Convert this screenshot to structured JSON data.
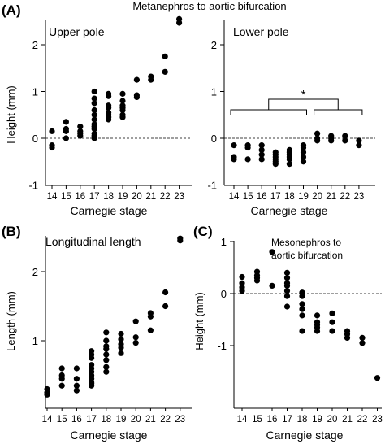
{
  "figure": {
    "top_title": "Metanephros to aortic bifurcation",
    "stage_xlabel": "Carnegie stage",
    "stages": [
      "14",
      "15",
      "16",
      "17",
      "18",
      "19",
      "20",
      "21",
      "22",
      "23"
    ]
  },
  "chart_data": [
    {
      "id": "A-upper",
      "panel_label": "(A)",
      "type": "scatter",
      "title": "Upper pole",
      "ylabel": "Height (mm)",
      "xlabel": "",
      "ylim": [
        -1,
        2.5
      ],
      "yticks": [
        "-1",
        "0",
        "1",
        "2"
      ],
      "reference_line": 0,
      "x": [
        "14",
        "14",
        "14",
        "15",
        "15",
        "15",
        "15",
        "16",
        "16",
        "16",
        "16",
        "17",
        "17",
        "17",
        "17",
        "17",
        "17",
        "17",
        "17",
        "17",
        "17",
        "17",
        "17",
        "18",
        "18",
        "18",
        "18",
        "18",
        "18",
        "18",
        "18",
        "19",
        "19",
        "19",
        "19",
        "19",
        "19",
        "19",
        "20",
        "20",
        "20",
        "21",
        "21",
        "22",
        "22",
        "23",
        "23"
      ],
      "y": [
        0.15,
        -0.15,
        -0.2,
        0.35,
        0.2,
        0.15,
        0.0,
        0.25,
        0.15,
        0.1,
        0.05,
        1.0,
        0.85,
        0.75,
        0.6,
        0.5,
        0.4,
        0.3,
        0.25,
        0.2,
        0.1,
        0.05,
        0.0,
        0.95,
        0.9,
        0.7,
        0.65,
        0.55,
        0.5,
        0.45,
        0.4,
        0.95,
        0.8,
        0.7,
        0.65,
        0.6,
        0.5,
        0.45,
        1.25,
        0.92,
        0.88,
        1.32,
        1.25,
        1.75,
        1.42,
        2.55,
        2.47
      ]
    },
    {
      "id": "A-lower",
      "panel_label": "",
      "type": "scatter",
      "title": "Lower pole",
      "xlabel": "Carnegie stage",
      "ylabel": "",
      "ylim": [
        -1,
        2.5
      ],
      "yticks": [
        "-1",
        "0",
        "1",
        "2"
      ],
      "reference_line": 0,
      "significance": "*",
      "x": [
        "14",
        "14",
        "14",
        "15",
        "15",
        "15",
        "16",
        "16",
        "16",
        "16",
        "17",
        "17",
        "17",
        "17",
        "17",
        "17",
        "18",
        "18",
        "18",
        "18",
        "18",
        "18",
        "19",
        "19",
        "19",
        "19",
        "19",
        "20",
        "20",
        "20",
        "21",
        "21",
        "21",
        "22",
        "22",
        "23",
        "23"
      ],
      "y": [
        -0.15,
        -0.4,
        -0.45,
        -0.15,
        -0.2,
        -0.45,
        -0.15,
        -0.25,
        -0.35,
        -0.45,
        -0.3,
        -0.35,
        -0.4,
        -0.45,
        -0.5,
        -0.55,
        -0.25,
        -0.3,
        -0.35,
        -0.4,
        -0.45,
        -0.55,
        -0.15,
        -0.2,
        -0.3,
        -0.4,
        -0.5,
        0.1,
        -0.05,
        0.0,
        0.05,
        0.0,
        -0.05,
        0.05,
        -0.05,
        -0.05,
        -0.15
      ]
    },
    {
      "id": "B",
      "panel_label": "(B)",
      "type": "scatter",
      "title": "Longitudinal length",
      "ylabel": "Length (mm)",
      "xlabel": "Carnegie stage",
      "ylim": [
        0,
        2.5
      ],
      "yticks": [
        "1",
        "2"
      ],
      "x": [
        "14",
        "14",
        "14",
        "15",
        "15",
        "15",
        "15",
        "16",
        "16",
        "16",
        "16",
        "17",
        "17",
        "17",
        "17",
        "17",
        "17",
        "17",
        "17",
        "17",
        "17",
        "17",
        "18",
        "18",
        "18",
        "18",
        "18",
        "18",
        "18",
        "18",
        "19",
        "19",
        "19",
        "19",
        "19",
        "20",
        "20",
        "20",
        "21",
        "21",
        "21",
        "22",
        "22",
        "23",
        "23"
      ],
      "y": [
        0.3,
        0.25,
        0.22,
        0.6,
        0.5,
        0.45,
        0.35,
        0.6,
        0.45,
        0.35,
        0.28,
        0.85,
        0.8,
        0.75,
        0.65,
        0.6,
        0.55,
        0.5,
        0.45,
        0.4,
        0.38,
        0.35,
        1.12,
        1.0,
        0.92,
        0.88,
        0.8,
        0.72,
        0.62,
        0.55,
        1.1,
        1.02,
        0.95,
        0.9,
        0.82,
        1.28,
        1.05,
        0.97,
        1.4,
        1.35,
        1.15,
        1.7,
        1.5,
        2.48,
        2.45
      ]
    },
    {
      "id": "C",
      "panel_label": "(C)",
      "type": "scatter",
      "title": "Mesonephros to aortic bifurcation",
      "title_lines": [
        "Mesonephros to",
        "aortic bifurcation"
      ],
      "ylabel": "Height (mm)",
      "xlabel": "Carnegie stage",
      "ylim": [
        -1.7,
        1
      ],
      "yticks": [
        "-1",
        "0",
        "1"
      ],
      "reference_line": 0,
      "x": [
        "14",
        "14",
        "14",
        "14",
        "15",
        "15",
        "15",
        "15",
        "16",
        "16",
        "17",
        "17",
        "17",
        "17",
        "17",
        "17",
        "17",
        "18",
        "18",
        "18",
        "18",
        "18",
        "18",
        "19",
        "19",
        "19",
        "19",
        "19",
        "20",
        "20",
        "20",
        "21",
        "21",
        "21",
        "22",
        "22",
        "23"
      ],
      "y": [
        0.32,
        0.2,
        0.12,
        0.05,
        0.42,
        0.35,
        0.3,
        0.25,
        0.8,
        0.15,
        0.4,
        0.3,
        0.2,
        0.15,
        0.05,
        -0.05,
        -0.25,
        0.02,
        -0.05,
        -0.2,
        -0.3,
        -0.42,
        -0.72,
        -0.42,
        -0.55,
        -0.6,
        -0.65,
        -0.72,
        -0.38,
        -0.55,
        -0.72,
        -0.72,
        -0.78,
        -0.85,
        -0.85,
        -0.95,
        -1.62
      ]
    }
  ]
}
